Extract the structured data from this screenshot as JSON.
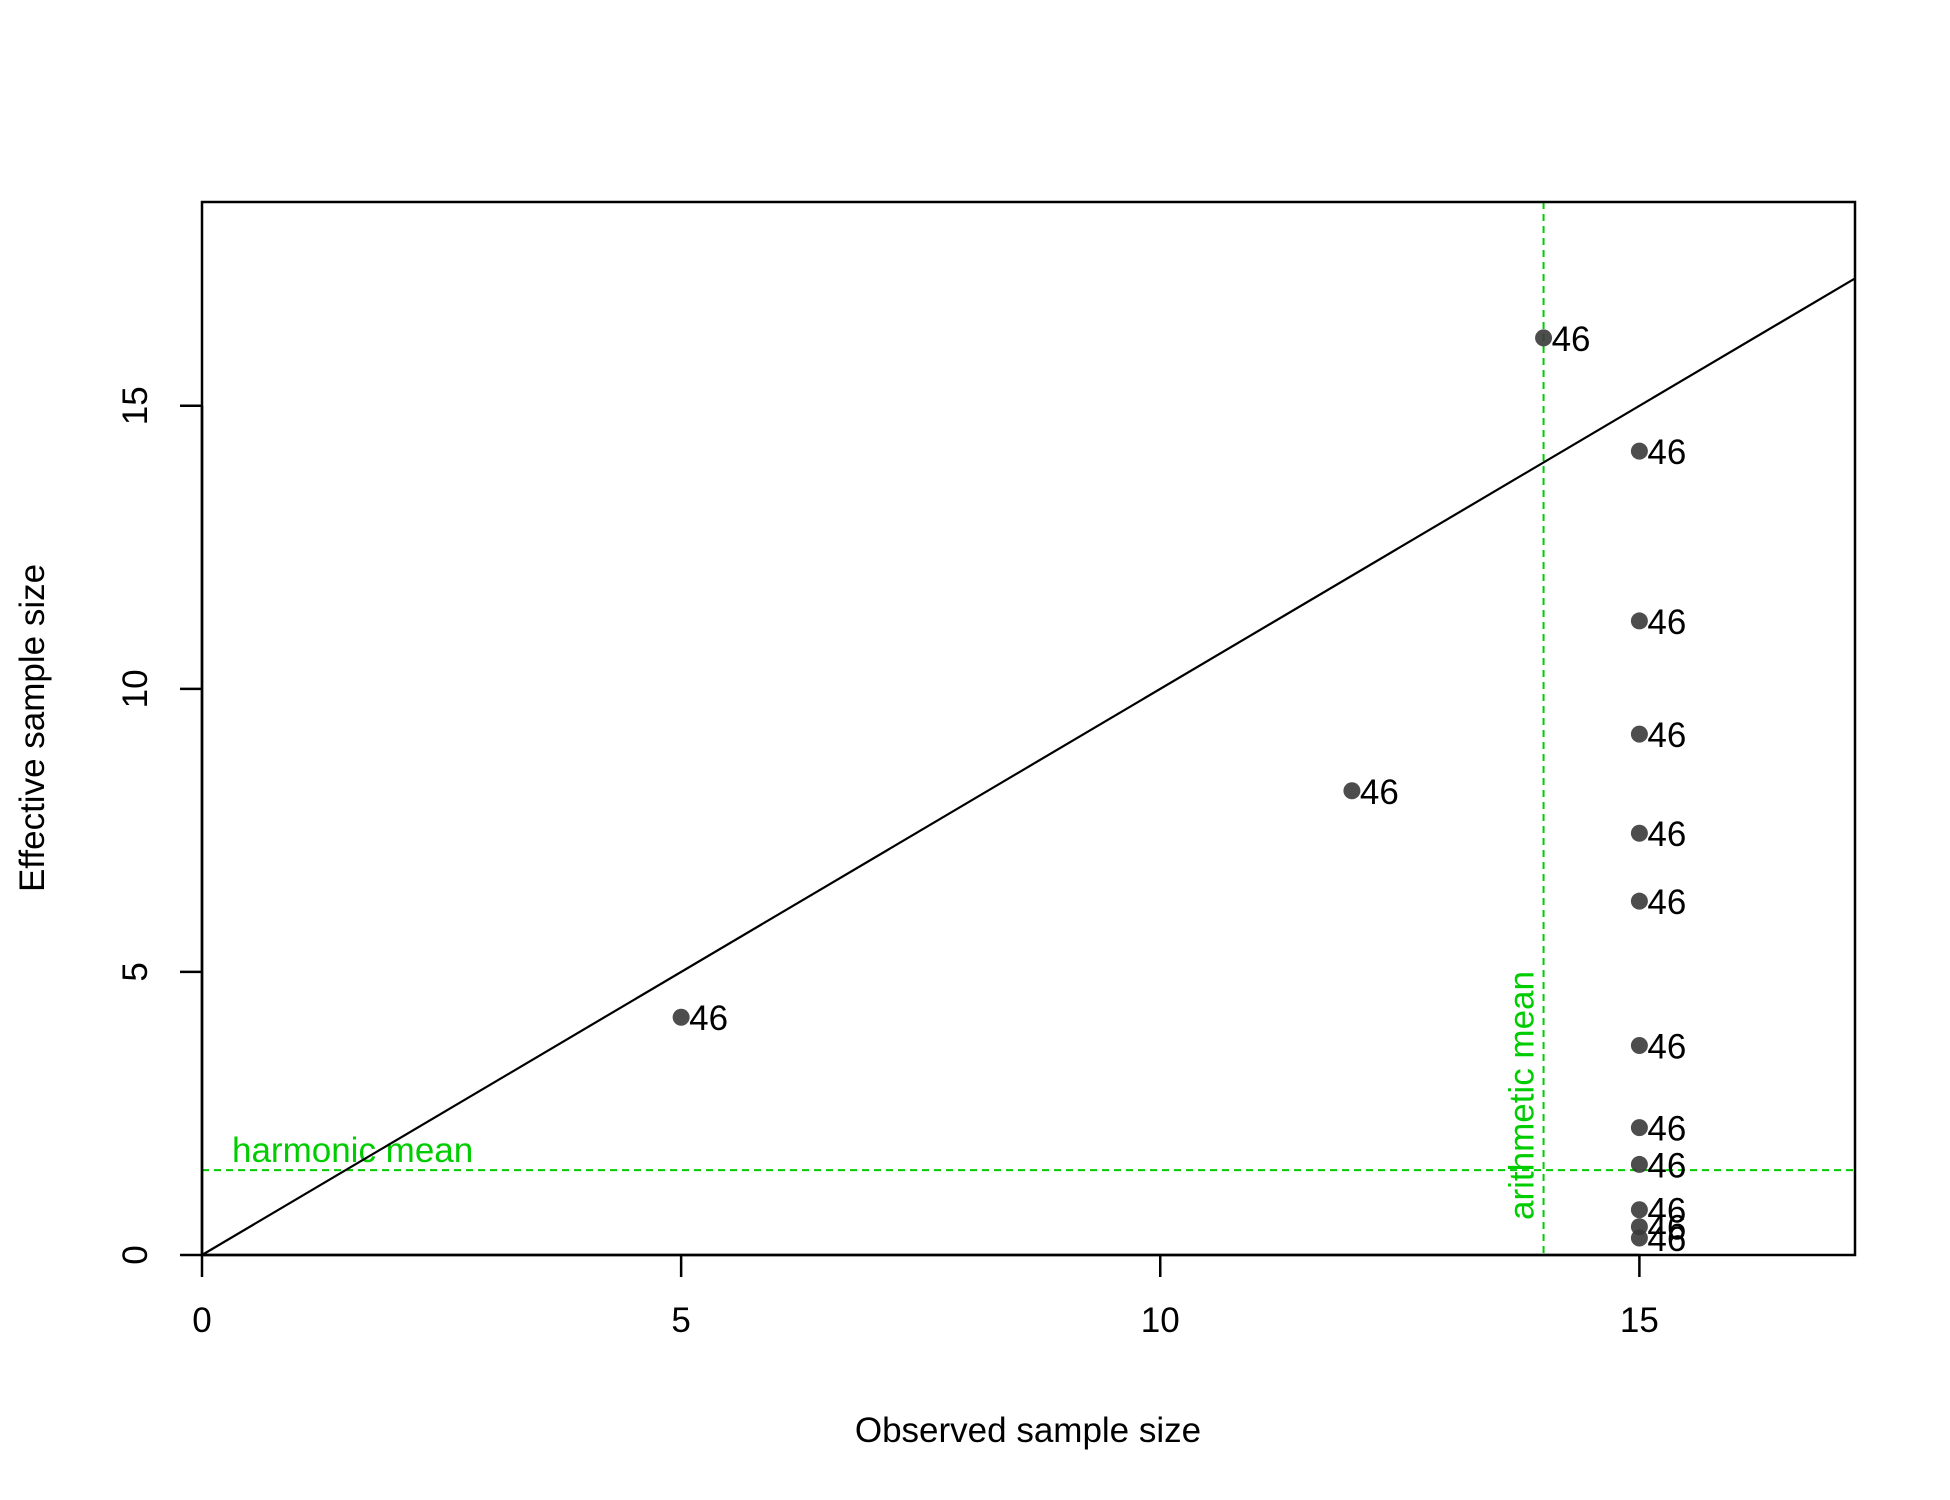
{
  "chart_data": {
    "type": "scatter",
    "title": "",
    "xlabel": "Observed sample size",
    "ylabel": "Effective sample size",
    "xlim": [
      0,
      17.25
    ],
    "ylim": [
      0,
      18.6
    ],
    "xticks": [
      0,
      5,
      10,
      15
    ],
    "yticks": [
      0,
      5,
      10,
      15
    ],
    "grid": false,
    "series": [
      {
        "points": [
          {
            "x": 5,
            "y": 4.2,
            "label": "46"
          },
          {
            "x": 12,
            "y": 8.2,
            "label": "46"
          },
          {
            "x": 14,
            "y": 16.2,
            "label": "46"
          },
          {
            "x": 15,
            "y": 14.2,
            "label": "46"
          },
          {
            "x": 15,
            "y": 11.2,
            "label": "46"
          },
          {
            "x": 15,
            "y": 9.2,
            "label": "46"
          },
          {
            "x": 15,
            "y": 7.45,
            "label": "46"
          },
          {
            "x": 15,
            "y": 6.25,
            "label": "46"
          },
          {
            "x": 15,
            "y": 3.7,
            "label": "46"
          },
          {
            "x": 15,
            "y": 2.25,
            "label": "46"
          },
          {
            "x": 15,
            "y": 1.6,
            "label": "46"
          },
          {
            "x": 15,
            "y": 0.8,
            "label": "46"
          },
          {
            "x": 15,
            "y": 0.5,
            "label": "46"
          },
          {
            "x": 15,
            "y": 0.3,
            "label": "46"
          }
        ]
      }
    ],
    "identity_line": {
      "from": [
        0,
        0
      ],
      "to": [
        17.25,
        17.25
      ]
    },
    "reference_lines": [
      {
        "orientation": "horizontal",
        "value": 1.5,
        "label": "harmonic mean",
        "color": "#00CD00"
      },
      {
        "orientation": "vertical",
        "value": 14,
        "label": "arithmetic mean",
        "color": "#00CD00"
      }
    ],
    "point_color": "#3a3a3a",
    "line_color": "#000000"
  }
}
